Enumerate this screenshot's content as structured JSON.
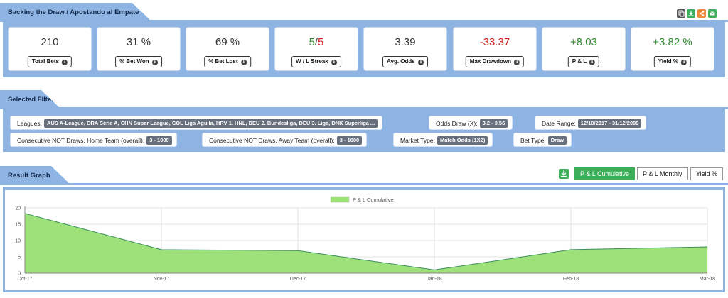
{
  "header": {
    "title": "Backing the Draw / Apostando al Empate",
    "tools": [
      {
        "icon": "copy-icon",
        "color": "#555555"
      },
      {
        "icon": "download-icon",
        "color": "#3fae5a"
      },
      {
        "icon": "share-icon",
        "color": "#f0883a"
      },
      {
        "icon": "email-icon",
        "color": "#3fae5a"
      }
    ]
  },
  "stats": [
    {
      "value": "210",
      "label": "Total Bets"
    },
    {
      "value": "31 %",
      "label": "% Bet Won"
    },
    {
      "value": "69 %",
      "label": "% Bet Lost"
    },
    {
      "value_won": "5",
      "value_sep": "/",
      "value_lost": "5",
      "label": "W / L Streak"
    },
    {
      "value": "3.39",
      "label": "Avg. Odds"
    },
    {
      "value": "-33.37",
      "label": "Max Drawdown"
    },
    {
      "value": "+8.03",
      "label": "P & L"
    },
    {
      "value": "+3.82 %",
      "label": "Yield %"
    }
  ],
  "colors": {
    "positive": "#2e8b2e",
    "negative": "#d02020",
    "accent": "#3fae5a",
    "band": "#8eb4e3"
  },
  "filters": {
    "title": "Selected Filters",
    "leagues": {
      "label": "Leagues:",
      "value": "AUS A-League, BRA Série A, CHN Super League, COL Liga Aguila, HRV 1. HNL, DEU 2. Bundesliga, DEU 3. Liga, DNK Superliga ..."
    },
    "odds": {
      "label": "Odds Draw (X):",
      "value": "3.2 - 3.56"
    },
    "date": {
      "label": "Date Range:",
      "value": "12/10/2017 - 31/12/2099"
    },
    "home": {
      "label": "Consecutive NOT Draws. Home Team (overall):",
      "value": "3 - 1000"
    },
    "away": {
      "label": "Consecutive NOT Draws. Away Team (overall):",
      "value": "3 - 1000"
    },
    "market": {
      "label": "Market Type:",
      "value": "Match Odds (1X2)"
    },
    "bet": {
      "label": "Bet Type:",
      "value": "Draw"
    }
  },
  "graph": {
    "title": "Result Graph",
    "buttons": {
      "cumulative": "P & L Cumulative",
      "monthly": "P & L Monthly",
      "yield": "Yield %"
    }
  },
  "chart_data": {
    "type": "area",
    "x": [
      "Oct-17",
      "Nov-17",
      "Dec-17",
      "Jan-18",
      "Feb-18",
      "Mar-18"
    ],
    "series": [
      {
        "name": "P & L Cumulative",
        "values": [
          18.3,
          7.2,
          6.9,
          1.0,
          7.2,
          8.03
        ],
        "color": "#9ee07a",
        "line_color": "#3a8f5c"
      }
    ],
    "y_ticks": [
      "0",
      "5",
      "10",
      "15",
      "20"
    ],
    "ylim": [
      0,
      20
    ],
    "grid": true,
    "legend": "top-center"
  }
}
